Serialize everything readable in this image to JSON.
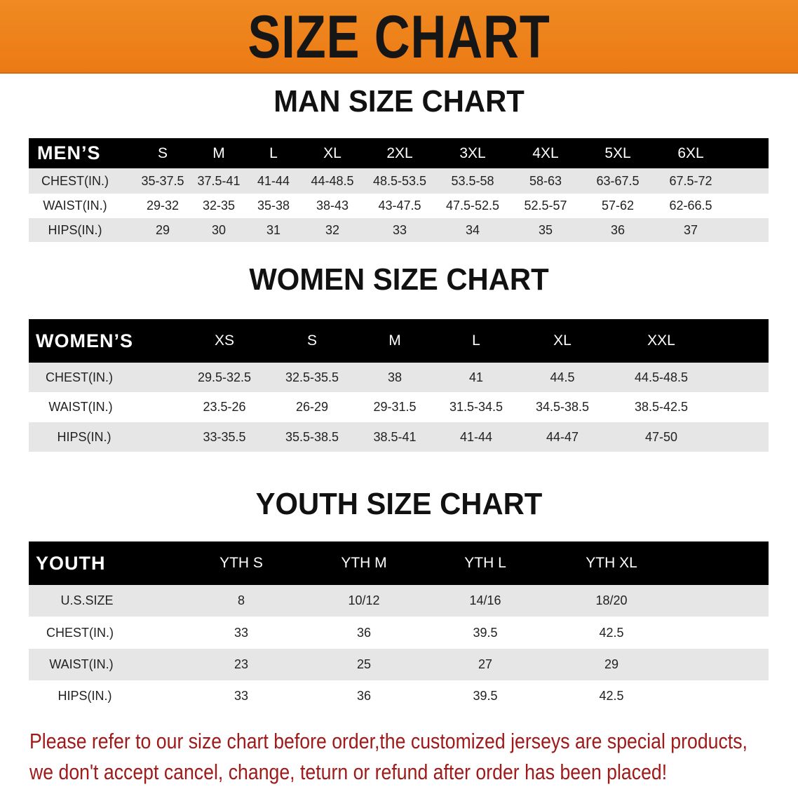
{
  "banner_title": "SIZE CHART",
  "men": {
    "title": "MAN SIZE CHART",
    "header": [
      "MEN’S",
      "S",
      "M",
      "L",
      "XL",
      "2XL",
      "3XL",
      "4XL",
      "5XL",
      "6XL"
    ],
    "rows": [
      [
        "CHEST(IN.)",
        "35-37.5",
        "37.5-41",
        "41-44",
        "44-48.5",
        "48.5-53.5",
        "53.5-58",
        "58-63",
        "63-67.5",
        "67.5-72"
      ],
      [
        "WAIST(IN.)",
        "29-32",
        "32-35",
        "35-38",
        "38-43",
        "43-47.5",
        "47.5-52.5",
        "52.5-57",
        "57-62",
        "62-66.5"
      ],
      [
        "HIPS(IN.)",
        "29",
        "30",
        "31",
        "32",
        "33",
        "34",
        "35",
        "36",
        "37"
      ]
    ]
  },
  "women": {
    "title": "WOMEN SIZE CHART",
    "header": [
      "WOMEN’S",
      "XS",
      "S",
      "M",
      "L",
      "XL",
      "XXL"
    ],
    "rows": [
      [
        "CHEST(IN.)",
        "29.5-32.5",
        "32.5-35.5",
        "38",
        "41",
        "44.5",
        "44.5-48.5"
      ],
      [
        "WAIST(IN.)",
        "23.5-26",
        "26-29",
        "29-31.5",
        "31.5-34.5",
        "34.5-38.5",
        "38.5-42.5"
      ],
      [
        "HIPS(IN.)",
        "33-35.5",
        "35.5-38.5",
        "38.5-41",
        "41-44",
        "44-47",
        "47-50"
      ]
    ]
  },
  "youth": {
    "title": "YOUTH SIZE CHART",
    "header": [
      "YOUTH",
      "YTH S",
      "YTH M",
      "YTH L",
      "YTH XL"
    ],
    "rows": [
      [
        "U.S.SIZE",
        "8",
        "10/12",
        "14/16",
        "18/20"
      ],
      [
        "CHEST(IN.)",
        "33",
        "36",
        "39.5",
        "42.5"
      ],
      [
        "WAIST(IN.)",
        "23",
        "25",
        "27",
        "29"
      ],
      [
        "HIPS(IN.)",
        "33",
        "36",
        "39.5",
        "42.5"
      ]
    ]
  },
  "note": {
    "line1": "Please refer to our size chart before order,the customized jerseys are special products,",
    "line2": "we don't accept cancel, change, teturn or refund after order has been placed!"
  },
  "colors": {
    "banner": "#ec7a14",
    "header_row": "#000000",
    "stripe": "#e6e6e6",
    "note_text": "#a01a1a"
  }
}
